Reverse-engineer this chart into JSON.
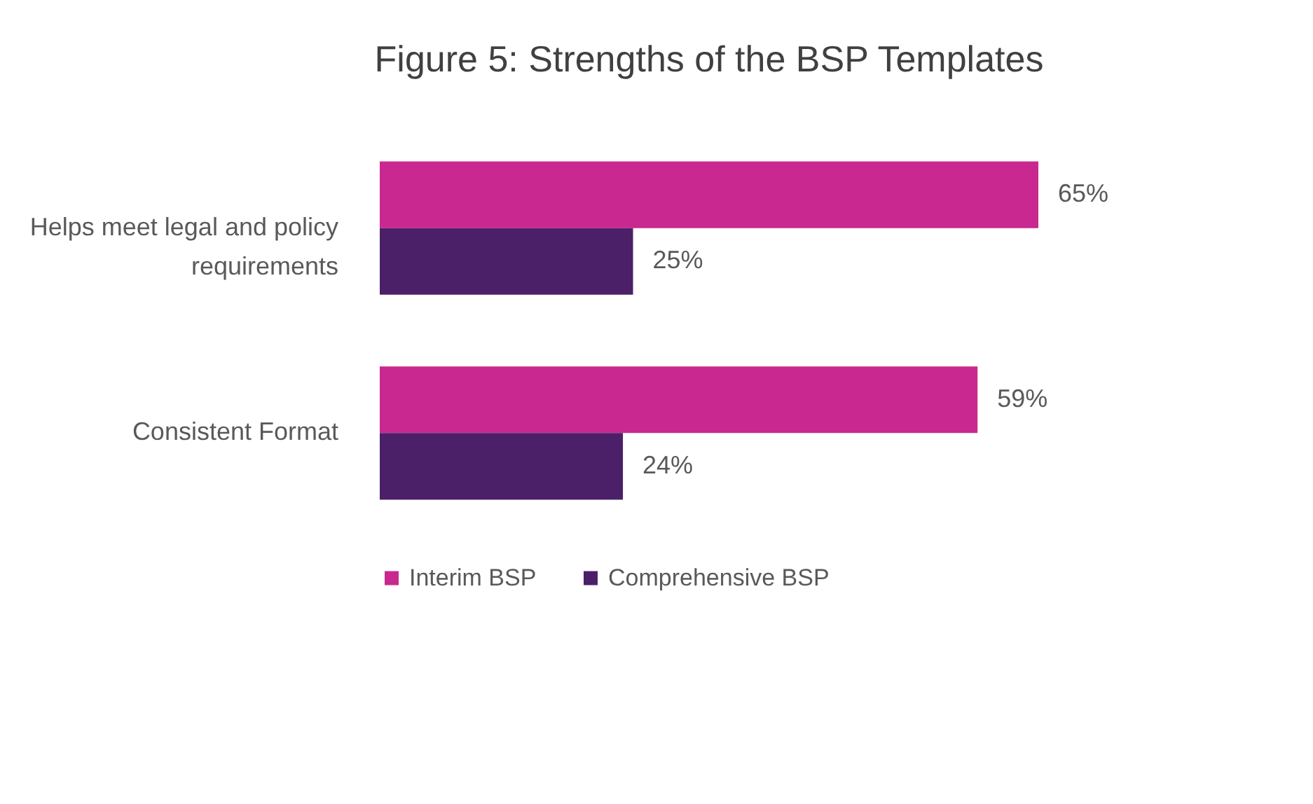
{
  "chart_data": {
    "type": "bar",
    "orientation": "horizontal",
    "title": "Figure 5: Strengths of the BSP Templates",
    "categories": [
      "Helps meet legal and policy requirements",
      "Consistent Format"
    ],
    "series": [
      {
        "name": "Interim BSP",
        "color": "#c8288f",
        "values": [
          65,
          59
        ],
        "value_labels": [
          "65%",
          "59%"
        ]
      },
      {
        "name": "Comprehensive BSP",
        "color": "#4b2068",
        "values": [
          25,
          24
        ],
        "value_labels": [
          "25%",
          "24%"
        ]
      }
    ],
    "legend": "bottom",
    "grid": false,
    "tick_labels": "y"
  }
}
